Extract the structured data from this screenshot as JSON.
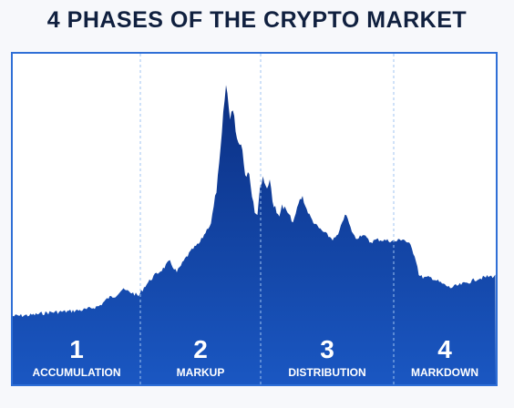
{
  "title": "4 PHASES OF THE CRYPTO MARKET",
  "colors": {
    "title": "#10203f",
    "frame": "#2f6fd6",
    "area_top": "#0b2f82",
    "area_bottom": "#1a57c2",
    "divider": "#9fc3f0",
    "label": "#ffffff"
  },
  "phases": [
    {
      "number": "1",
      "name": "ACCUMULATION"
    },
    {
      "number": "2",
      "name": "MARKUP"
    },
    {
      "number": "3",
      "name": "DISTRIBUTION"
    },
    {
      "number": "4",
      "name": "MARKDOWN"
    }
  ]
}
